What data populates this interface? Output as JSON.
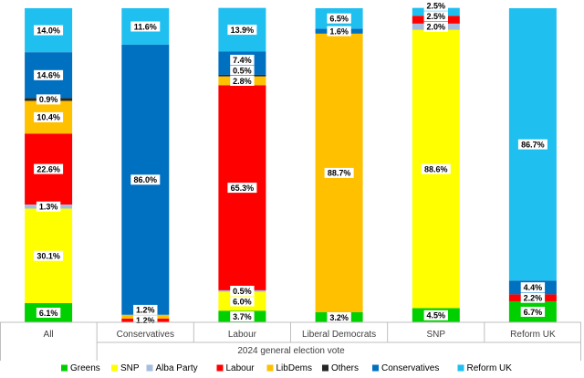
{
  "chart_data": {
    "type": "bar",
    "stacked": true,
    "xlabel": "2024 general election vote",
    "ylabel": "",
    "ylim": [
      0,
      100
    ],
    "grid": false,
    "legend_position": "bottom",
    "categories": [
      "All",
      "Conservatives",
      "Labour",
      "Liberal Democrats",
      "SNP",
      "Reform UK"
    ],
    "series": [
      {
        "name": "Greens",
        "color": "#00d000",
        "values": [
          6.1,
          0,
          3.7,
          3.2,
          4.5,
          6.7
        ]
      },
      {
        "name": "SNP",
        "color": "#ffff00",
        "values": [
          30.1,
          0,
          6.0,
          0,
          88.6,
          0
        ]
      },
      {
        "name": "Alba Party",
        "color": "#a6bde0",
        "values": [
          1.3,
          0,
          0.5,
          0,
          2.0,
          0
        ]
      },
      {
        "name": "Labour",
        "color": "#ff0000",
        "values": [
          22.6,
          1.2,
          65.3,
          0,
          2.5,
          2.2
        ]
      },
      {
        "name": "LibDems",
        "color": "#ffc000",
        "values": [
          10.4,
          1.2,
          2.8,
          88.7,
          0,
          0
        ]
      },
      {
        "name": "Others",
        "color": "#262626",
        "values": [
          0.9,
          0,
          0.5,
          0,
          0,
          0
        ]
      },
      {
        "name": "Conservatives",
        "color": "#0070c0",
        "values": [
          14.6,
          86.0,
          7.4,
          1.6,
          0,
          4.4
        ]
      },
      {
        "name": "Reform UK",
        "color": "#1fbff0",
        "values": [
          14.0,
          11.6,
          13.9,
          6.5,
          2.5,
          86.7
        ]
      }
    ],
    "data_labels": [
      {
        "col": 0,
        "series": "Greens",
        "text": "6.1%"
      },
      {
        "col": 0,
        "series": "SNP",
        "text": "30.1%"
      },
      {
        "col": 0,
        "series": "Alba Party",
        "text": "1.3%"
      },
      {
        "col": 0,
        "series": "Labour",
        "text": "22.6%"
      },
      {
        "col": 0,
        "series": "LibDems",
        "text": "10.4%"
      },
      {
        "col": 0,
        "series": "Others",
        "text": "0.9%"
      },
      {
        "col": 0,
        "series": "Conservatives",
        "text": "14.6%"
      },
      {
        "col": 0,
        "series": "Reform UK",
        "text": "14.0%"
      },
      {
        "col": 1,
        "series": "Labour",
        "text": "1.2%"
      },
      {
        "col": 1,
        "series": "LibDems",
        "text": "1.2%"
      },
      {
        "col": 1,
        "series": "Conservatives",
        "text": "86.0%"
      },
      {
        "col": 1,
        "series": "Reform UK",
        "text": "11.6%"
      },
      {
        "col": 2,
        "series": "Greens",
        "text": "3.7%"
      },
      {
        "col": 2,
        "series": "SNP",
        "text": "6.0%"
      },
      {
        "col": 2,
        "series": "Alba Party",
        "text": "0.5%"
      },
      {
        "col": 2,
        "series": "Labour",
        "text": "65.3%"
      },
      {
        "col": 2,
        "series": "LibDems",
        "text": "2.8%"
      },
      {
        "col": 2,
        "series": "Others",
        "text": "0.5%"
      },
      {
        "col": 2,
        "series": "Conservatives",
        "text": "7.4%"
      },
      {
        "col": 2,
        "series": "Reform UK",
        "text": "13.9%"
      },
      {
        "col": 3,
        "series": "Greens",
        "text": "3.2%"
      },
      {
        "col": 3,
        "series": "LibDems",
        "text": "88.7%"
      },
      {
        "col": 3,
        "series": "Conservatives",
        "text": "1.6%"
      },
      {
        "col": 3,
        "series": "Reform UK",
        "text": "6.5%"
      },
      {
        "col": 4,
        "series": "Greens",
        "text": "4.5%"
      },
      {
        "col": 4,
        "series": "SNP",
        "text": "88.6%"
      },
      {
        "col": 4,
        "series": "Alba Party",
        "text": "2.0%"
      },
      {
        "col": 4,
        "series": "Labour",
        "text": "2.5%"
      },
      {
        "col": 4,
        "series": "Reform UK",
        "text": "2.5%"
      },
      {
        "col": 5,
        "series": "Greens",
        "text": "6.7%"
      },
      {
        "col": 5,
        "series": "Labour",
        "text": "2.2%"
      },
      {
        "col": 5,
        "series": "Conservatives",
        "text": "4.4%"
      },
      {
        "col": 5,
        "series": "Reform UK",
        "text": "86.7%"
      }
    ]
  }
}
